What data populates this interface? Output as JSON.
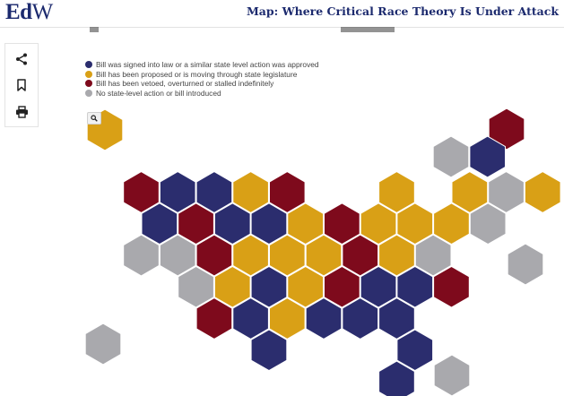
{
  "header": {
    "logo_bold": "Ed",
    "logo_light": "W",
    "headline": "Map: Where Critical Race Theory Is Under Attack"
  },
  "toolbar": {
    "share_icon": "share-icon",
    "bookmark_icon": "bookmark-icon",
    "print_icon": "print-icon"
  },
  "colors": {
    "signed": "#2b2d6e",
    "proposed": "#d9a016",
    "vetoed": "#7e0a1c",
    "none": "#a9a9ad"
  },
  "legend": [
    {
      "status": "signed",
      "label": "Bill was signed into law or a similar state level action was approved"
    },
    {
      "status": "proposed",
      "label": "Bill has been proposed or is moving through state legislature"
    },
    {
      "status": "vetoed",
      "label": "Bill has been vetoed, overturned or stalled indefinitely"
    },
    {
      "status": "none",
      "label": "No state-level action or bill introduced"
    }
  ],
  "map": {
    "zoom_icon": "search-icon",
    "tiles": [
      {
        "row": 0,
        "col": 11,
        "status": "vetoed"
      },
      {
        "row": 1,
        "col": 10,
        "status": "none"
      },
      {
        "row": 1,
        "col": 11,
        "status": "signed"
      },
      {
        "row": 2,
        "col": 0,
        "status": "vetoed"
      },
      {
        "row": 2,
        "col": 1,
        "status": "signed"
      },
      {
        "row": 2,
        "col": 2,
        "status": "signed"
      },
      {
        "row": 2,
        "col": 3,
        "status": "proposed"
      },
      {
        "row": 2,
        "col": 4,
        "status": "vetoed"
      },
      {
        "row": 2,
        "col": 7,
        "status": "proposed"
      },
      {
        "row": 2,
        "col": 9,
        "status": "proposed"
      },
      {
        "row": 2,
        "col": 10,
        "status": "none"
      },
      {
        "row": 2,
        "col": 11,
        "status": "proposed"
      },
      {
        "row": 3,
        "col": 0,
        "status": "signed"
      },
      {
        "row": 3,
        "col": 1,
        "status": "vetoed"
      },
      {
        "row": 3,
        "col": 2,
        "status": "signed"
      },
      {
        "row": 3,
        "col": 3,
        "status": "signed"
      },
      {
        "row": 3,
        "col": 4,
        "status": "proposed"
      },
      {
        "row": 3,
        "col": 5,
        "status": "vetoed"
      },
      {
        "row": 3,
        "col": 6,
        "status": "proposed"
      },
      {
        "row": 3,
        "col": 7,
        "status": "proposed"
      },
      {
        "row": 3,
        "col": 8,
        "status": "proposed"
      },
      {
        "row": 3,
        "col": 9,
        "status": "none"
      },
      {
        "row": 4,
        "col": 0,
        "status": "none"
      },
      {
        "row": 4,
        "col": 1,
        "status": "none"
      },
      {
        "row": 4,
        "col": 2,
        "status": "vetoed"
      },
      {
        "row": 4,
        "col": 3,
        "status": "proposed"
      },
      {
        "row": 4,
        "col": 4,
        "status": "proposed"
      },
      {
        "row": 4,
        "col": 5,
        "status": "proposed"
      },
      {
        "row": 4,
        "col": 6,
        "status": "vetoed"
      },
      {
        "row": 4,
        "col": 7,
        "status": "proposed"
      },
      {
        "row": 4,
        "col": 8,
        "status": "none"
      },
      {
        "row": 5,
        "col": 1,
        "status": "none"
      },
      {
        "row": 5,
        "col": 2,
        "status": "proposed"
      },
      {
        "row": 5,
        "col": 3,
        "status": "signed"
      },
      {
        "row": 5,
        "col": 4,
        "status": "proposed"
      },
      {
        "row": 5,
        "col": 5,
        "status": "vetoed"
      },
      {
        "row": 5,
        "col": 6,
        "status": "signed"
      },
      {
        "row": 5,
        "col": 7,
        "status": "signed"
      },
      {
        "row": 5,
        "col": 8,
        "status": "vetoed"
      },
      {
        "row": 5,
        "col": 11,
        "status": "none"
      },
      {
        "row": 6,
        "col": 2,
        "status": "vetoed"
      },
      {
        "row": 6,
        "col": 3,
        "status": "signed"
      },
      {
        "row": 6,
        "col": 4,
        "status": "proposed"
      },
      {
        "row": 6,
        "col": 5,
        "status": "signed"
      },
      {
        "row": 6,
        "col": 6,
        "status": "signed"
      },
      {
        "row": 6,
        "col": 7,
        "status": "signed"
      },
      {
        "row": 7,
        "col": 3,
        "status": "signed"
      },
      {
        "row": 7,
        "col": 7,
        "status": "signed"
      },
      {
        "row": 8,
        "col": -1,
        "status": "none"
      },
      {
        "row": 8,
        "col": 7,
        "status": "signed"
      },
      {
        "row": 9,
        "col": 8,
        "status": "none"
      },
      {
        "row": -1,
        "col": -1,
        "status": "proposed"
      }
    ]
  }
}
